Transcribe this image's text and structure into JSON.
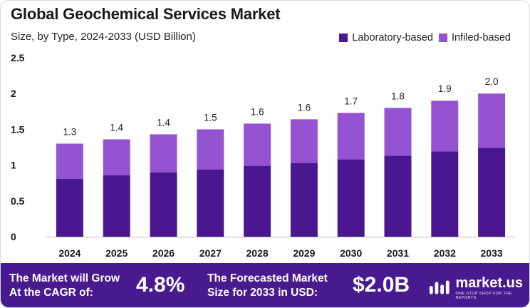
{
  "title": "Global Geochemical Services Market",
  "subtitle": "Size, by Type, 2024-2033 (USD Billion)",
  "legend": [
    {
      "label": "Laboratory-based",
      "color": "#4a1790"
    },
    {
      "label": "Infiled-based",
      "color": "#9553d1"
    }
  ],
  "chart_data": {
    "type": "bar",
    "stacked": true,
    "categories": [
      "2024",
      "2025",
      "2026",
      "2027",
      "2028",
      "2029",
      "2030",
      "2031",
      "2032",
      "2033"
    ],
    "series": [
      {
        "name": "Laboratory-based",
        "color": "#4a1790",
        "values": [
          0.81,
          0.86,
          0.9,
          0.94,
          0.99,
          1.03,
          1.08,
          1.13,
          1.19,
          1.24
        ]
      },
      {
        "name": "Infiled-based",
        "color": "#9553d1",
        "values": [
          0.49,
          0.5,
          0.53,
          0.56,
          0.59,
          0.61,
          0.65,
          0.67,
          0.71,
          0.76
        ]
      }
    ],
    "totals_labels": [
      "1.3",
      "1.4",
      "1.4",
      "1.5",
      "1.6",
      "1.6",
      "1.7",
      "1.8",
      "1.9",
      "2.0"
    ],
    "y_ticks": [
      "0",
      "0.5",
      "1",
      "1.5",
      "2",
      "2.5"
    ],
    "ylim": [
      0,
      2.5
    ],
    "grid": false,
    "legend_position": "top-right"
  },
  "footer": {
    "cagr_text_line1": "The Market will Grow",
    "cagr_text_line2": "At the CAGR of:",
    "cagr_value": "4.8%",
    "forecast_text_line1": "The Forecasted Market",
    "forecast_text_line2": "Size for 2033 in USD:",
    "forecast_value": "$2.0B",
    "brand_name": "market.us",
    "brand_tagline": "ONE STOP SHOP FOR THE REPORTS",
    "background_color": "#481a8f"
  }
}
